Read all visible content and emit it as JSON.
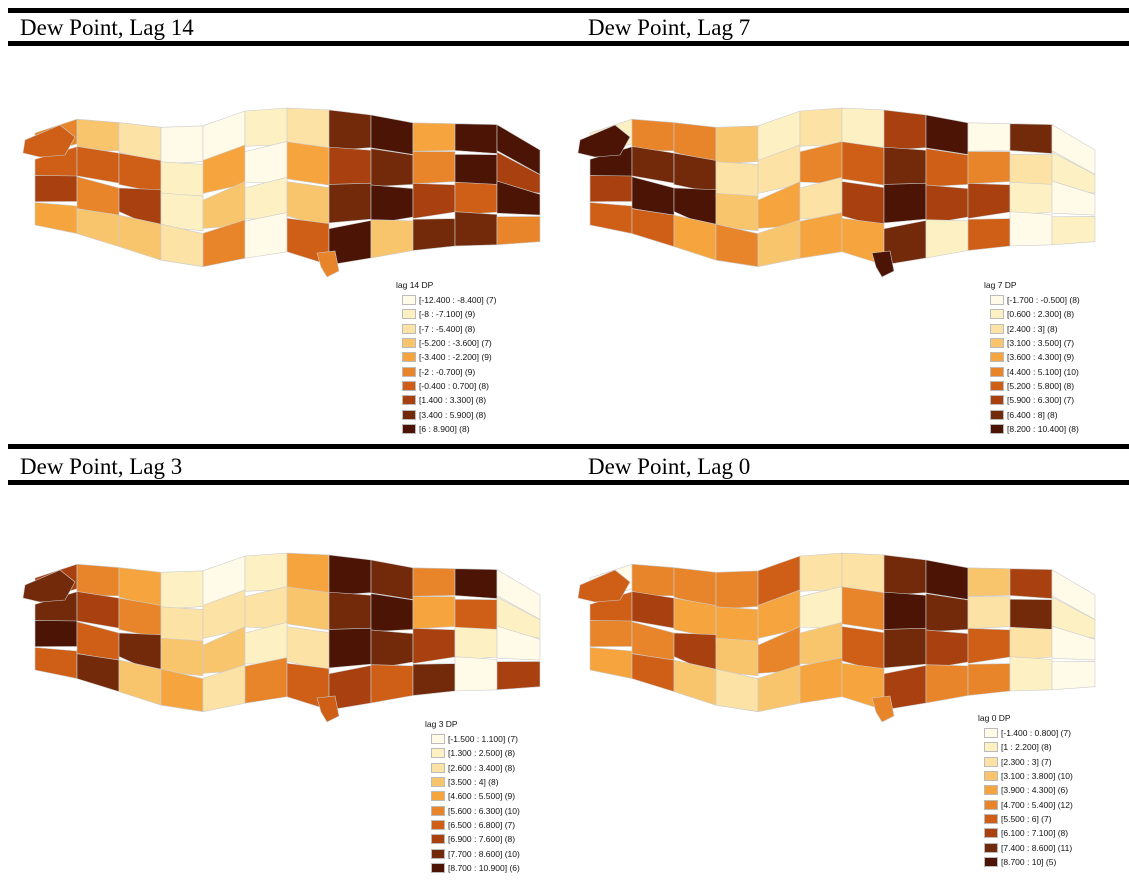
{
  "palette": [
    "#fffbe8",
    "#fdf1c4",
    "#fde2a6",
    "#f9c56c",
    "#f6a43e",
    "#e8842a",
    "#cf5f16",
    "#a8400f",
    "#732a0a",
    "#4b1405"
  ],
  "panels": [
    {
      "id": "lag14",
      "title": "Dew Point, Lag 14",
      "legend_title": "lag 14 DP",
      "legend_items": [
        "[-12.400 : -8.400] (7)",
        "[-8 : -7.100] (9)",
        "[-7 : -5.400] (8)",
        "[-5.200 : -3.600] (7)",
        "[-3.400 : -2.200] (9)",
        "[-2 : -0.700] (9)",
        "[-0.400 : 0.700] (8)",
        "[1.400 : 3.300] (8)",
        "[3.400 : 5.900] (8)",
        "[6 : 8.900] (8)"
      ],
      "region_classes": [
        5,
        6,
        7,
        4,
        3,
        6,
        5,
        3,
        2,
        6,
        7,
        3,
        0,
        1,
        1,
        2,
        0,
        4,
        3,
        5,
        1,
        0,
        1,
        0,
        2,
        4,
        3,
        6,
        8,
        7,
        8,
        9,
        9,
        8,
        9,
        3,
        4,
        5,
        7,
        8,
        9,
        9,
        6,
        8,
        9,
        7,
        9
      ]
    },
    {
      "id": "lag7",
      "title": "Dew Point, Lag 7",
      "legend_title": "lag 7 DP",
      "legend_items": [
        "[-1.700 : -0.500] (8)",
        "[0.600 : 2.300] (8)",
        "[2.400 : 3] (8)",
        "[3.100 : 3.500] (7)",
        "[3.600 : 4.300] (9)",
        "[4.400 : 5.100] (10)",
        "[5.200 : 5.800] (8)",
        "[5.900 : 6.300] (7)",
        "[6.400 : 8] (8)",
        "[8.200 : 10.400] (8)"
      ],
      "region_classes": [
        1,
        9,
        7,
        6,
        5,
        8,
        9,
        6,
        5,
        8,
        9,
        4,
        3,
        2,
        3,
        5,
        1,
        2,
        4,
        3,
        2,
        5,
        2,
        4,
        1,
        6,
        7,
        4,
        7,
        8,
        9,
        8,
        9,
        6,
        7,
        1,
        0,
        5,
        7,
        6,
        8,
        2,
        1,
        0,
        0,
        1,
        0
      ]
    },
    {
      "id": "lag3",
      "title": "Dew Point, Lag 3",
      "legend_title": "lag 3 DP",
      "legend_items": [
        "[-1.500 : 1.100] (7)",
        "[1.300 : 2.500] (8)",
        "[2.600 : 3.400] (8)",
        "[3.500 : 4] (8)",
        "[4.600 : 5.500] (9)",
        "[5.600 : 6.300] (10)",
        "[6.500 : 6.800] (7)",
        "[6.900 : 7.600] (8)",
        "[7.700 : 8.600] (10)",
        "[8.700 : 10.900] (6)"
      ],
      "region_classes": [
        7,
        8,
        9,
        6,
        5,
        7,
        6,
        8,
        4,
        5,
        8,
        3,
        1,
        2,
        3,
        4,
        0,
        2,
        3,
        2,
        1,
        2,
        1,
        5,
        4,
        3,
        2,
        6,
        9,
        8,
        9,
        7,
        8,
        9,
        8,
        6,
        5,
        4,
        7,
        8,
        9,
        6,
        1,
        0,
        0,
        1,
        0
      ]
    },
    {
      "id": "lag0",
      "title": "Dew Point, Lag 0",
      "legend_title": "lag 0 DP",
      "legend_items": [
        "[-1.400 : 0.800] (7)",
        "[1 : 2.200] (8)",
        "[2.300 : 3] (7)",
        "[3.100 : 3.800] (10)",
        "[3.900 : 4.300] (6)",
        "[4.700 : 5.400] (12)",
        "[5.500 : 6] (7)",
        "[6.100 : 7.100] (8)",
        "[7.400 : 8.600] (11)",
        "[8.700 : 10] (5)"
      ],
      "region_classes": [
        0,
        6,
        5,
        4,
        5,
        7,
        5,
        6,
        5,
        4,
        7,
        3,
        5,
        4,
        3,
        2,
        6,
        4,
        5,
        3,
        2,
        1,
        3,
        4,
        2,
        5,
        6,
        4,
        8,
        9,
        8,
        7,
        9,
        8,
        7,
        5,
        3,
        2,
        6,
        5,
        7,
        8,
        2,
        1,
        0,
        1,
        0
      ]
    }
  ]
}
